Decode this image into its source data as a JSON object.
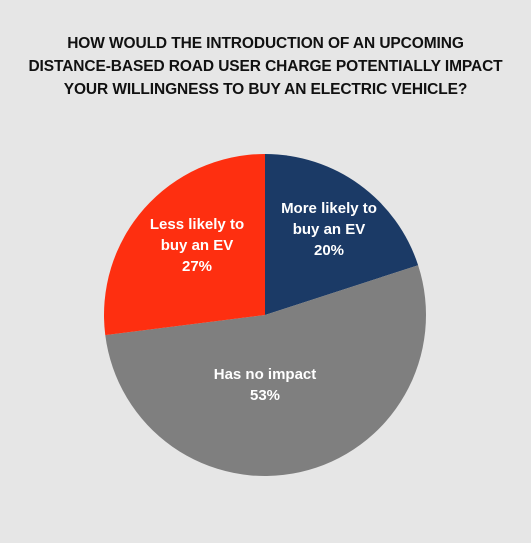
{
  "chart_data": {
    "type": "pie",
    "title_lines": [
      "HOW WOULD THE INTRODUCTION OF AN UPCOMING",
      "DISTANCE-BASED ROAD USER CHARGE POTENTIALLY IMPACT",
      "YOUR WILLINGNESS TO BUY AN ELECTRIC VEHICLE?"
    ],
    "slices": [
      {
        "label_lines": [
          "More likely to",
          "buy an EV"
        ],
        "value": 20,
        "value_label": "20%",
        "color": "#1b3a66"
      },
      {
        "label_lines": [
          "Has no impact"
        ],
        "value": 53,
        "value_label": "53%",
        "color": "#7f7f7f"
      },
      {
        "label_lines": [
          "Less likely to",
          "buy an EV"
        ],
        "value": 27,
        "value_label": "27%",
        "color": "#fe2f10"
      }
    ],
    "start_angle": "12 o'clock",
    "direction": "clockwise",
    "legend": "none (labels inside slices)"
  }
}
